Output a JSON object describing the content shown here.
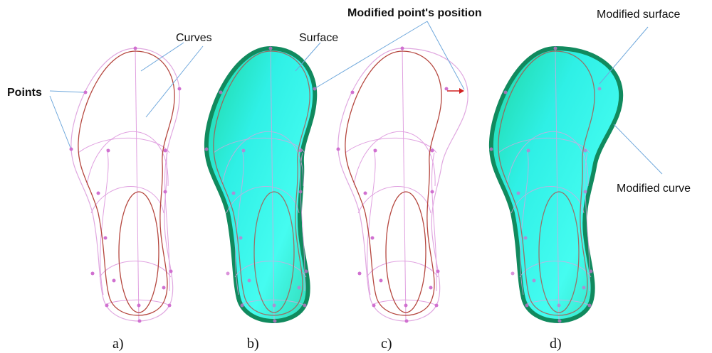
{
  "labels": {
    "points": "Points",
    "curves": "Curves",
    "surface": "Surface",
    "modified_point": "Modified point's position",
    "modified_surface": "Modified surface",
    "modified_curve": "Modified curve"
  },
  "captions": [
    "a)",
    "b)",
    "c)",
    "d)"
  ]
}
